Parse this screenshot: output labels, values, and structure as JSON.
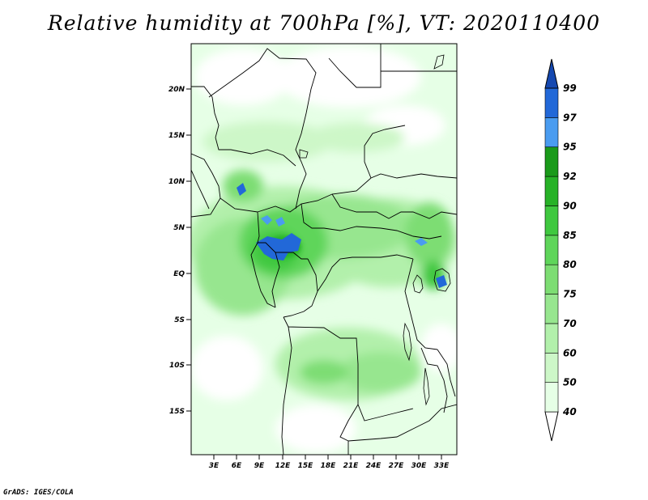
{
  "title": "Relative humidity at 700hPa [%], VT: 2020110400",
  "credit": "GrADS: IGES/COLA",
  "map": {
    "lat_labels": [
      "20N",
      "15N",
      "10N",
      "5N",
      "EQ",
      "5S",
      "10S",
      "15S"
    ],
    "lon_labels": [
      "3E",
      "6E",
      "9E",
      "12E",
      "15E",
      "18E",
      "21E",
      "24E",
      "27E",
      "30E",
      "33E"
    ]
  },
  "colorbar": {
    "levels": [
      "40",
      "50",
      "60",
      "70",
      "75",
      "80",
      "85",
      "90",
      "92",
      "95",
      "97",
      "99"
    ],
    "colors": [
      "#ffffff",
      "#e6ffe6",
      "#cdf7c8",
      "#b2f0ab",
      "#97e68f",
      "#7ddd73",
      "#5fd55a",
      "#3fc83f",
      "#27b227",
      "#1a9a1a",
      "#4a9cf0",
      "#2268d8",
      "#1548b0"
    ]
  }
}
